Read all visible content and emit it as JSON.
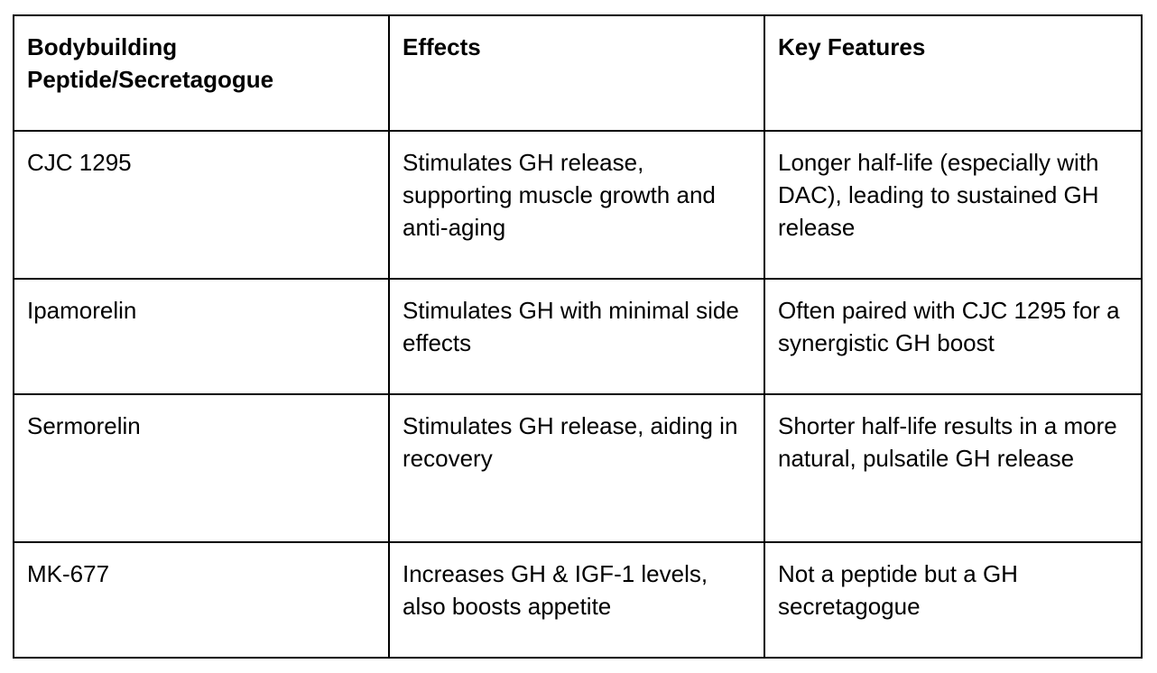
{
  "table": {
    "headers": [
      "Bodybuilding Peptide/Secretagogue",
      "Effects",
      "Key Features"
    ],
    "rows": [
      [
        "CJC 1295",
        "Stimulates GH release, supporting muscle growth and anti-aging",
        "Longer half-life (especially with DAC), leading to sustained GH release"
      ],
      [
        "Ipamorelin",
        "Stimulates GH with minimal side effects",
        "Often paired with CJC 1295 for a synergistic GH boost"
      ],
      [
        "Sermorelin",
        "Stimulates GH release, aiding in recovery",
        "Shorter half-life results in a more natural, pulsatile GH release"
      ],
      [
        "MK-677",
        "Increases GH & IGF-1 levels, also boosts appetite",
        "Not a peptide but a GH secretagogue"
      ]
    ]
  }
}
